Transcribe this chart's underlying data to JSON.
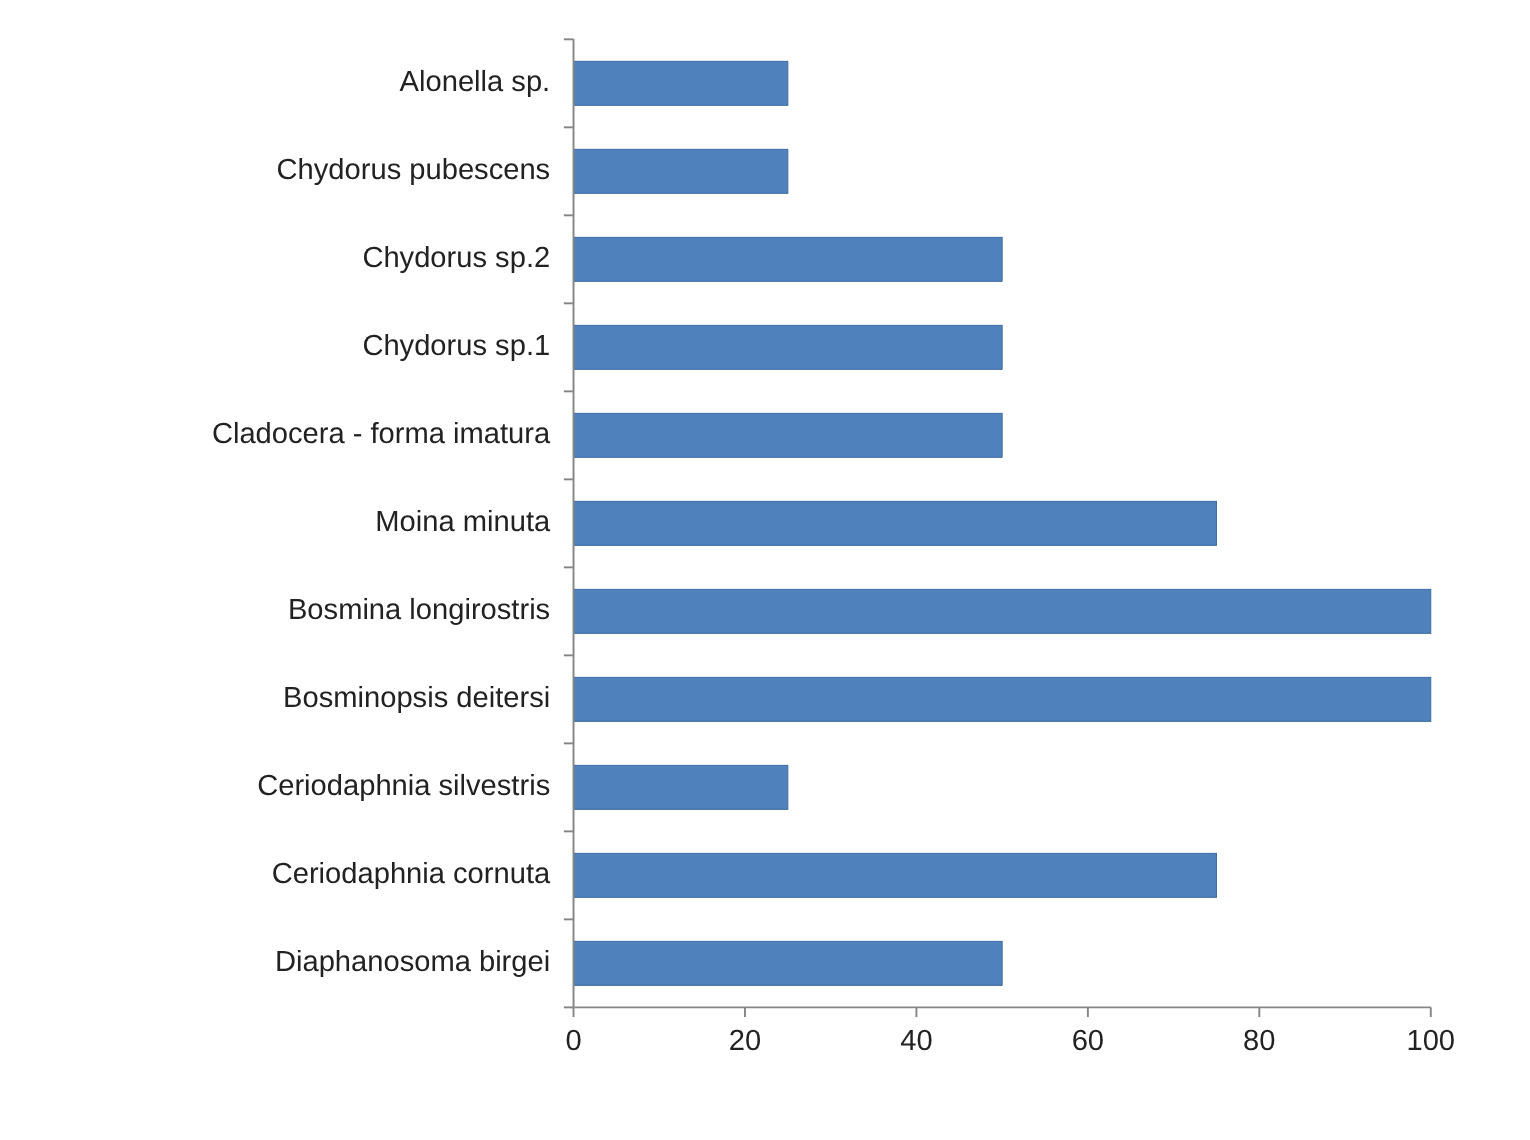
{
  "chart_data": {
    "type": "bar",
    "orientation": "horizontal",
    "categories": [
      "Alonella sp.",
      "Chydorus pubescens",
      "Chydorus sp.2",
      "Chydorus sp.1",
      "Cladocera - forma imatura",
      "Moina minuta",
      "Bosmina longirostris",
      "Bosminopsis deitersi",
      "Ceriodaphnia silvestris",
      "Ceriodaphnia cornuta",
      "Diaphanosoma birgei"
    ],
    "values": [
      25,
      25,
      50,
      50,
      50,
      75,
      100,
      100,
      25,
      75,
      50
    ],
    "color": "#4f81bd",
    "xlim": [
      0,
      100
    ],
    "xticks": [
      0,
      20,
      40,
      60,
      80,
      100
    ]
  }
}
